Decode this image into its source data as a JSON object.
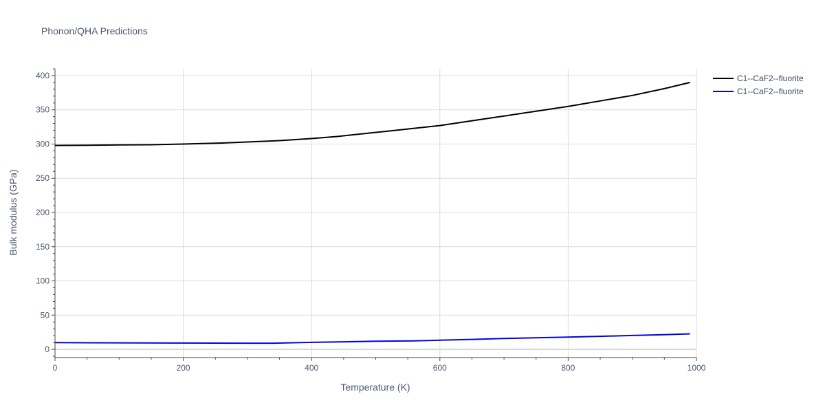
{
  "chart_data": {
    "type": "line",
    "title": "Phonon/QHA Predictions",
    "xlabel": "Temperature (K)",
    "ylabel": "Bulk modulus (GPa)",
    "xlim": [
      0,
      1000
    ],
    "ylim": [
      -12,
      410
    ],
    "xticks": [
      0,
      200,
      400,
      600,
      800,
      1000
    ],
    "yticks": [
      0,
      50,
      100,
      150,
      200,
      250,
      300,
      350,
      400
    ],
    "grid": true,
    "legend_position": "top-right",
    "series": [
      {
        "name": "C1--CaF2--fluorite",
        "color": "#000000",
        "x": [
          0,
          50,
          100,
          150,
          200,
          260,
          300,
          350,
          400,
          440,
          480,
          520,
          560,
          600,
          650,
          700,
          750,
          800,
          850,
          900,
          950,
          990
        ],
        "y": [
          298,
          298.3,
          298.7,
          299,
          300,
          301.5,
          303,
          305,
          308,
          311,
          315,
          319,
          323,
          327,
          334,
          341,
          348,
          355,
          363,
          371,
          381,
          390
        ]
      },
      {
        "name": "C1--CaF2--fluorite",
        "color": "#0000ee",
        "x": [
          0,
          100,
          200,
          300,
          340,
          400,
          450,
          500,
          560,
          600,
          650,
          700,
          750,
          800,
          850,
          900,
          950,
          990
        ],
        "y": [
          9.8,
          9.5,
          9.2,
          9.0,
          9.0,
          10.2,
          11.0,
          11.8,
          12.4,
          13.3,
          14.5,
          15.8,
          16.8,
          17.8,
          19.0,
          20.3,
          21.5,
          22.7
        ]
      }
    ]
  }
}
